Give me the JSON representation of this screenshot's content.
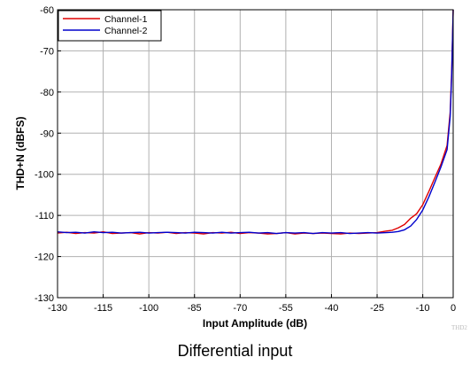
{
  "chart_data": {
    "type": "line",
    "title": "",
    "xlabel": "Input Amplitude (dB)",
    "ylabel": "THD+N (dBFS)",
    "xlim": [
      -130,
      0
    ],
    "ylim": [
      -130,
      -60
    ],
    "xticks": [
      -130,
      -115,
      -100,
      -85,
      -70,
      -55,
      -40,
      -25,
      -10,
      0
    ],
    "yticks": [
      -60,
      -70,
      -80,
      -90,
      -100,
      -110,
      -120,
      -130
    ],
    "grid": true,
    "legend_position": "top-left",
    "watermark": "THD2",
    "series": [
      {
        "name": "Channel-1",
        "color": "#e00000",
        "x": [
          -130,
          -127,
          -124,
          -121,
          -118,
          -115,
          -112,
          -109,
          -106,
          -103,
          -100,
          -97,
          -94,
          -91,
          -88,
          -85,
          -82,
          -79,
          -76,
          -73,
          -70,
          -67,
          -64,
          -61,
          -58,
          -55,
          -52,
          -49,
          -46,
          -43,
          -40,
          -37,
          -34,
          -31,
          -28,
          -25,
          -22,
          -20,
          -18,
          -16,
          -14,
          -12,
          -10,
          -8,
          -6,
          -4,
          -2,
          -1,
          -0.5,
          0
        ],
        "y": [
          -114.3,
          -114.1,
          -114.4,
          -114.2,
          -114.3,
          -114.0,
          -114.4,
          -114.3,
          -114.2,
          -114.5,
          -114.2,
          -114.3,
          -114.1,
          -114.4,
          -114.2,
          -114.3,
          -114.5,
          -114.2,
          -114.3,
          -114.1,
          -114.4,
          -114.2,
          -114.3,
          -114.5,
          -114.4,
          -114.2,
          -114.5,
          -114.3,
          -114.4,
          -114.3,
          -114.4,
          -114.5,
          -114.3,
          -114.4,
          -114.3,
          -114.2,
          -113.8,
          -113.6,
          -113.0,
          -112.2,
          -110.7,
          -109.6,
          -107.4,
          -104.2,
          -100.8,
          -97.5,
          -93.0,
          -85.0,
          -75.0,
          -60.0
        ]
      },
      {
        "name": "Channel-2",
        "color": "#0000cc",
        "x": [
          -130,
          -127,
          -124,
          -121,
          -118,
          -115,
          -112,
          -109,
          -106,
          -103,
          -100,
          -97,
          -94,
          -91,
          -88,
          -85,
          -82,
          -79,
          -76,
          -73,
          -70,
          -67,
          -64,
          -61,
          -58,
          -55,
          -52,
          -49,
          -46,
          -43,
          -40,
          -37,
          -34,
          -31,
          -28,
          -25,
          -22,
          -20,
          -18,
          -16,
          -14,
          -12,
          -10,
          -8,
          -6,
          -4,
          -2,
          -1,
          -0.5,
          0
        ],
        "y": [
          -114.0,
          -114.2,
          -114.1,
          -114.3,
          -114.0,
          -114.2,
          -114.1,
          -114.3,
          -114.2,
          -114.1,
          -114.3,
          -114.2,
          -114.1,
          -114.2,
          -114.3,
          -114.1,
          -114.2,
          -114.3,
          -114.1,
          -114.3,
          -114.2,
          -114.1,
          -114.3,
          -114.2,
          -114.4,
          -114.2,
          -114.3,
          -114.2,
          -114.4,
          -114.2,
          -114.3,
          -114.2,
          -114.4,
          -114.3,
          -114.2,
          -114.3,
          -114.2,
          -114.1,
          -113.9,
          -113.5,
          -112.6,
          -111.0,
          -108.7,
          -105.5,
          -101.9,
          -98.2,
          -94.0,
          -86.0,
          -76.0,
          -60.0
        ]
      }
    ]
  },
  "caption": "Differential input"
}
